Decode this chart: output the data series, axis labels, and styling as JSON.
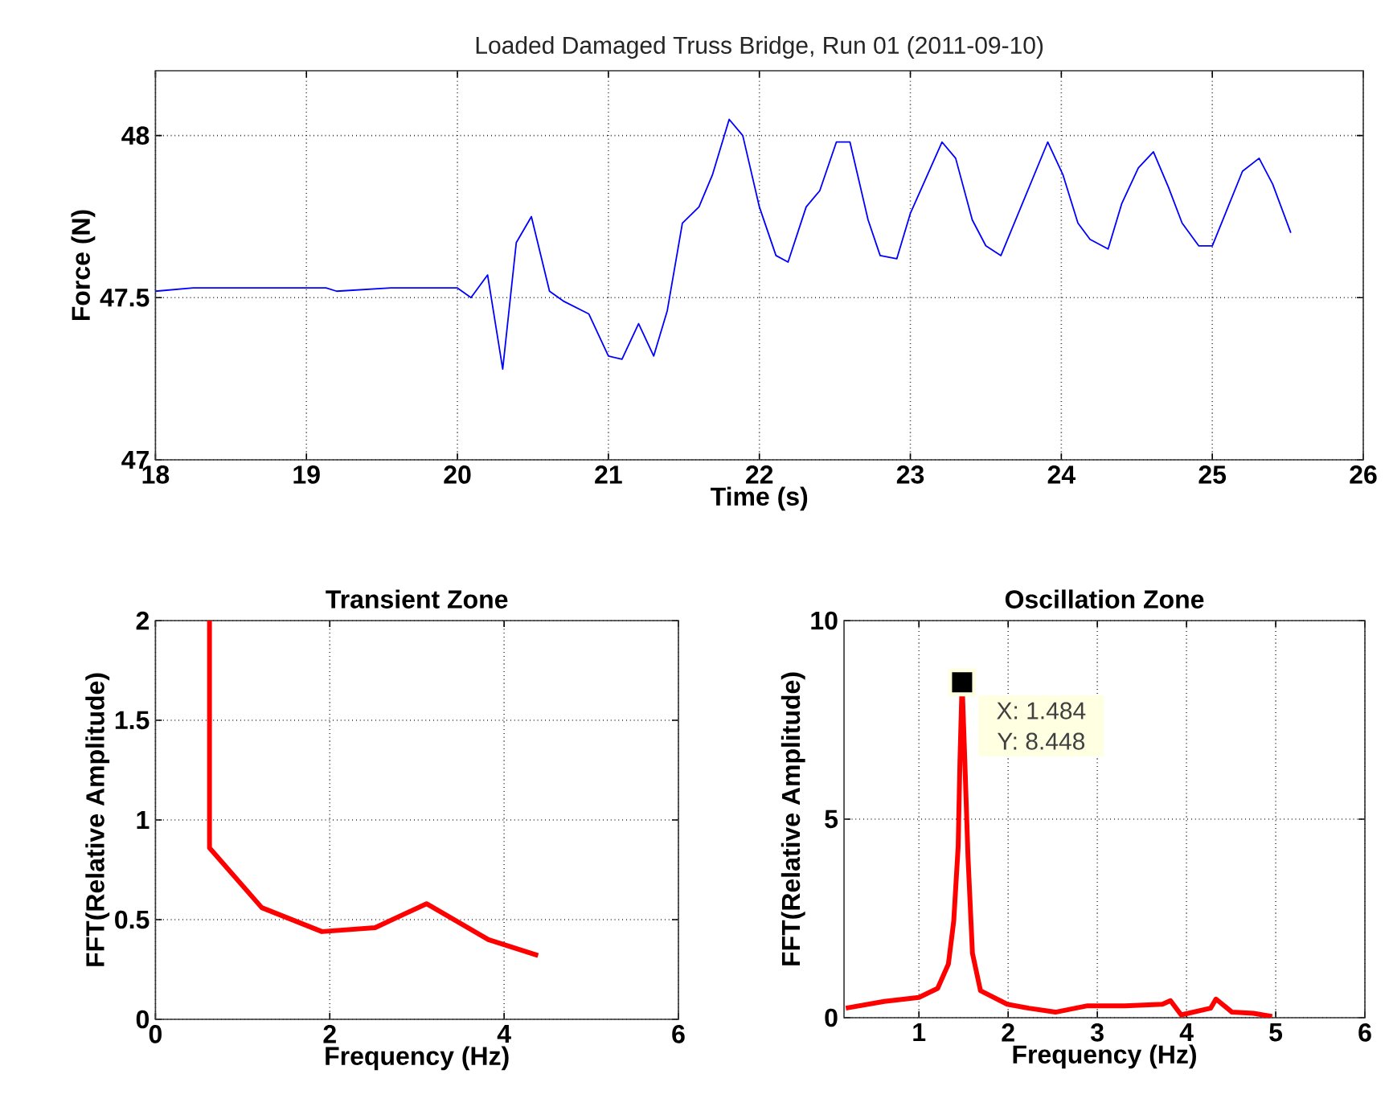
{
  "chart_data": [
    {
      "type": "line",
      "title": "Loaded Damaged Truss Bridge, Run 01 (2011-09-10)",
      "xlabel": "Time (s)",
      "ylabel": "Force (N)",
      "xlim": [
        18,
        26
      ],
      "ylim": [
        47,
        48.2
      ],
      "xticks": [
        18,
        19,
        20,
        21,
        22,
        23,
        24,
        25,
        26
      ],
      "yticks": [
        47,
        47.5,
        48
      ],
      "grid": true,
      "series": [
        {
          "color": "#0000ff",
          "x": [
            18.0,
            18.25,
            19.13,
            19.2,
            19.56,
            20.0,
            20.09,
            20.2,
            20.3,
            20.39,
            20.49,
            20.61,
            20.7,
            20.87,
            21.0,
            21.09,
            21.2,
            21.3,
            21.39,
            21.49,
            21.6,
            21.69,
            21.8,
            21.89,
            22.0,
            22.11,
            22.19,
            22.31,
            22.4,
            22.51,
            22.6,
            22.72,
            22.8,
            22.91,
            23.0,
            23.21,
            23.3,
            23.41,
            23.5,
            23.6,
            23.91,
            24.01,
            24.11,
            24.19,
            24.31,
            24.4,
            24.51,
            24.61,
            24.71,
            24.8,
            24.91,
            25.0,
            25.2,
            25.31,
            25.4,
            25.52
          ],
          "values": [
            47.52,
            47.53,
            47.53,
            47.52,
            47.53,
            47.53,
            47.5,
            47.57,
            47.28,
            47.67,
            47.75,
            47.52,
            47.49,
            47.45,
            47.32,
            47.31,
            47.42,
            47.32,
            47.46,
            47.73,
            47.78,
            47.88,
            48.05,
            48.0,
            47.78,
            47.63,
            47.61,
            47.78,
            47.83,
            47.98,
            47.98,
            47.74,
            47.63,
            47.62,
            47.76,
            47.98,
            47.93,
            47.74,
            47.66,
            47.63,
            47.98,
            47.88,
            47.73,
            47.68,
            47.65,
            47.79,
            47.9,
            47.95,
            47.84,
            47.73,
            47.66,
            47.66,
            47.89,
            47.93,
            47.85,
            47.7
          ]
        }
      ]
    },
    {
      "type": "line",
      "title": "Transient Zone",
      "xlabel": "Frequency (Hz)",
      "ylabel": "FFT(Relative Amplitude)",
      "xlim": [
        0,
        6
      ],
      "ylim": [
        0,
        2
      ],
      "xticks": [
        0,
        2,
        4,
        6
      ],
      "yticks": [
        0,
        0.5,
        1,
        1.5,
        2
      ],
      "grid": true,
      "series": [
        {
          "color": "#ff0000",
          "x": [
            0.62,
            0.62,
            1.22,
            1.91,
            2.52,
            3.11,
            3.82,
            4.39
          ],
          "values": [
            2.0,
            0.86,
            0.56,
            0.44,
            0.46,
            0.58,
            0.4,
            0.32
          ]
        }
      ]
    },
    {
      "type": "line",
      "title": "Oscillation Zone",
      "xlabel": "Frequency (Hz)",
      "ylabel": "FFT(Relative Amplitude)",
      "xlim": [
        0.16,
        6
      ],
      "ylim": [
        0,
        10
      ],
      "xticks": [
        1,
        2,
        3,
        4,
        5,
        6
      ],
      "yticks": [
        0,
        5,
        10
      ],
      "grid": true,
      "annotations": [
        {
          "text": "X: 1.484",
          "x": 1.484,
          "y": 8.448
        },
        {
          "text": "Y: 8.448",
          "x": 1.484,
          "y": 8.448
        }
      ],
      "series": [
        {
          "color": "#ff0000",
          "x": [
            0.18,
            0.61,
            1.0,
            1.21,
            1.33,
            1.39,
            1.44,
            1.46,
            1.484,
            1.51,
            1.55,
            1.6,
            1.69,
            1.99,
            2.23,
            2.53,
            2.89,
            3.31,
            3.73,
            3.82,
            3.94,
            4.27,
            4.33,
            4.51,
            4.75,
            4.96
          ],
          "values": [
            0.24,
            0.41,
            0.51,
            0.74,
            1.35,
            2.43,
            4.32,
            6.49,
            8.448,
            6.76,
            4.05,
            1.62,
            0.68,
            0.34,
            0.24,
            0.14,
            0.3,
            0.3,
            0.34,
            0.43,
            0.07,
            0.24,
            0.47,
            0.14,
            0.11,
            0.03
          ]
        }
      ]
    }
  ]
}
